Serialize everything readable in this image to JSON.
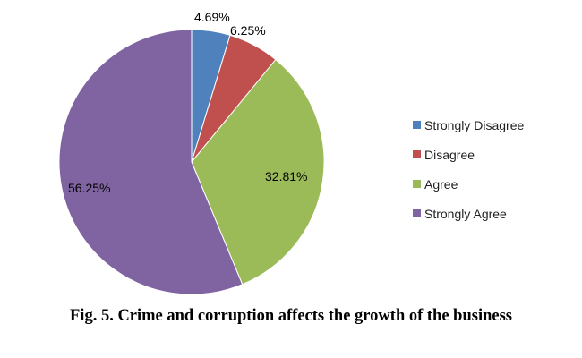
{
  "chart_data": {
    "type": "pie",
    "title": "",
    "categories": [
      "Strongly Disagree",
      "Disagree",
      "Agree",
      "Strongly Agree"
    ],
    "values": [
      4.69,
      6.25,
      32.81,
      56.25
    ],
    "data_labels": [
      "4.69%",
      "6.25%",
      "32.81%",
      "56.25%"
    ],
    "colors": [
      "#4f81bd",
      "#c0504d",
      "#9bbb59",
      "#8064a2"
    ],
    "start_angle": "12 o'clock",
    "direction": "clockwise",
    "legend_position": "right"
  },
  "legend": {
    "items": [
      {
        "label": "Strongly Disagree",
        "color": "#4f81bd"
      },
      {
        "label": "Disagree",
        "color": "#c0504d"
      },
      {
        "label": "Agree",
        "color": "#9bbb59"
      },
      {
        "label": "Strongly Agree",
        "color": "#8064a2"
      }
    ]
  },
  "caption": "Fig. 5. Crime and corruption affects the growth of the business"
}
